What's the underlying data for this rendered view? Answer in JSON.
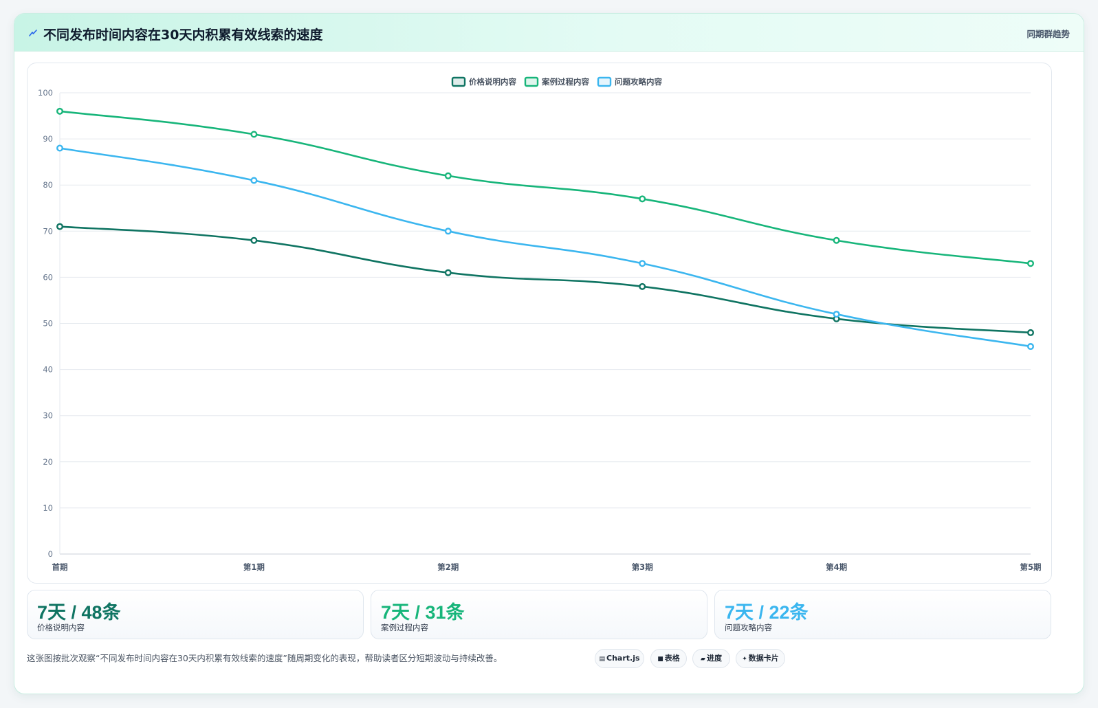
{
  "header": {
    "title": "不同发布时间内容在30天内积累有效线索的速度",
    "tag": "同期群趋势"
  },
  "chart_data": {
    "type": "line",
    "categories": [
      "首期",
      "第1期",
      "第2期",
      "第3期",
      "第4期",
      "第5期"
    ],
    "series": [
      {
        "name": "价格说明内容",
        "color": "#0f7462",
        "values": [
          71,
          68,
          61,
          58,
          51,
          48
        ]
      },
      {
        "name": "案例过程内容",
        "color": "#17b57a",
        "values": [
          96,
          91,
          82,
          77,
          68,
          63
        ]
      },
      {
        "name": "问题攻略内容",
        "color": "#3bb6ef",
        "values": [
          88,
          81,
          70,
          63,
          52,
          45
        ]
      }
    ],
    "ylim": [
      0,
      100
    ],
    "yticks": [
      0,
      10,
      20,
      30,
      40,
      50,
      60,
      70,
      80,
      90,
      100
    ],
    "grid": true,
    "legend": "top-center"
  },
  "stats": [
    {
      "value": "7天 / 48条",
      "label": "价格说明内容",
      "color": "#0f7462"
    },
    {
      "value": "7天 / 31条",
      "label": "案例过程内容",
      "color": "#17b57a"
    },
    {
      "value": "7天 / 22条",
      "label": "问题攻略内容",
      "color": "#3bb6ef"
    }
  ],
  "footnote": "这张图按批次观察“不同发布时间内容在30天内积累有效线索的速度”随周期变化的表现，帮助读者区分短期波动与持续改善。",
  "chips": [
    {
      "icon": "chart-icon",
      "glyph": "▤",
      "label": "Chart.js"
    },
    {
      "icon": "table-icon",
      "glyph": "■",
      "label": "表格"
    },
    {
      "icon": "progress-icon",
      "glyph": "▰",
      "label": "进度"
    },
    {
      "icon": "sparkle-icon",
      "glyph": "✦",
      "label": "数据卡片"
    }
  ]
}
